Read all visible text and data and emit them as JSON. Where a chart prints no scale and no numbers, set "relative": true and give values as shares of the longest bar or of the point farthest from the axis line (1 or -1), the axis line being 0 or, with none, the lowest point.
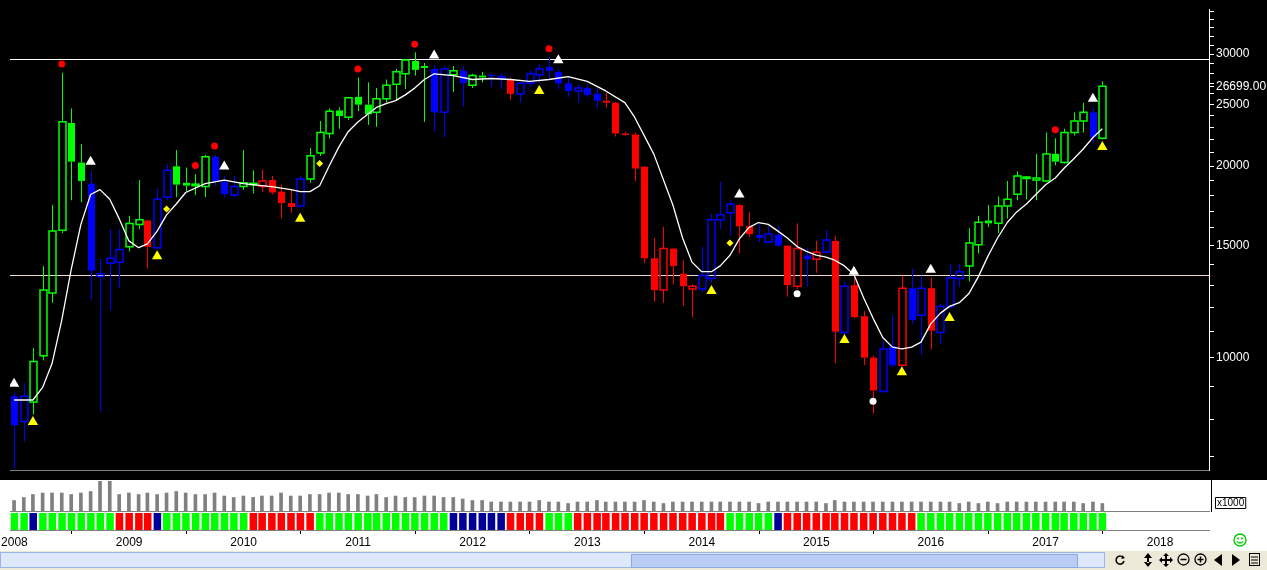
{
  "chart_data": [
    {
      "type": "candlestick",
      "x": [
        "2008-01",
        "2008-02",
        "2008-03",
        "2008-04",
        "2008-05",
        "2008-06",
        "2008-07",
        "2008-08",
        "2008-09",
        "2008-10",
        "2008-11",
        "2008-12",
        "2009-01",
        "2009-02",
        "2009-03",
        "2009-04",
        "2009-05",
        "2009-06",
        "2009-07",
        "2009-08",
        "2009-09",
        "2009-10",
        "2009-11",
        "2009-12",
        "2010-01",
        "2010-02",
        "2010-03",
        "2010-04",
        "2010-05",
        "2010-06",
        "2010-07",
        "2010-08",
        "2010-09",
        "2010-10",
        "2010-11",
        "2010-12",
        "2011-01",
        "2011-02",
        "2011-03",
        "2011-04",
        "2011-05",
        "2011-06",
        "2011-07",
        "2011-08",
        "2011-09",
        "2011-10",
        "2011-11",
        "2011-12",
        "2012-01",
        "2012-02",
        "2012-03",
        "2012-04",
        "2012-05",
        "2012-06",
        "2012-07",
        "2012-08",
        "2012-09",
        "2012-10",
        "2012-11",
        "2012-12",
        "2013-01",
        "2013-02",
        "2013-03",
        "2013-04",
        "2013-05",
        "2013-06",
        "2013-07",
        "2013-08",
        "2013-09",
        "2013-10",
        "2013-11",
        "2013-12",
        "2014-01",
        "2014-02",
        "2014-03",
        "2014-04",
        "2014-05",
        "2014-06",
        "2014-07",
        "2014-08",
        "2014-09",
        "2014-10",
        "2014-11",
        "2014-12",
        "2015-01",
        "2015-02",
        "2015-03",
        "2015-04",
        "2015-05",
        "2015-06",
        "2015-07",
        "2015-08",
        "2015-09",
        "2015-10",
        "2015-11",
        "2015-12",
        "2016-01",
        "2016-02",
        "2016-03",
        "2016-04",
        "2016-05",
        "2016-06",
        "2016-07",
        "2016-08",
        "2016-09",
        "2016-10",
        "2016-11",
        "2016-12",
        "2017-01",
        "2017-02",
        "2017-03",
        "2017-04",
        "2017-05",
        "2017-06",
        "2017-07"
      ],
      "ohlc": [
        [
          8700,
          8820,
          6700,
          7830
        ],
        [
          7940,
          9120,
          7380,
          8700
        ],
        [
          8520,
          10360,
          8140,
          9860
        ],
        [
          10070,
          13930,
          9900,
          12770
        ],
        [
          12640,
          17380,
          12200,
          15810
        ],
        [
          15860,
          28050,
          15700,
          23480
        ],
        [
          23390,
          24650,
          17680,
          20330
        ],
        [
          20260,
          21660,
          17560,
          18960
        ],
        [
          18770,
          19630,
          12330,
          13700
        ],
        [
          13410,
          14280,
          8230,
          13550
        ],
        [
          14080,
          15920,
          11870,
          14330
        ],
        [
          14130,
          15920,
          12860,
          14790
        ],
        [
          14940,
          16710,
          14690,
          16250
        ],
        [
          16190,
          19020,
          15920,
          16480
        ],
        [
          16430,
          16480,
          13800,
          14940
        ],
        [
          14890,
          18440,
          14840,
          17740
        ],
        [
          17880,
          20190,
          17680,
          19700
        ],
        [
          19990,
          21200,
          17880,
          18710
        ],
        [
          18830,
          19900,
          18240,
          18640
        ],
        [
          18700,
          19430,
          18010,
          18740
        ],
        [
          18580,
          20840,
          17880,
          20690
        ],
        [
          20690,
          20840,
          18640,
          18900
        ],
        [
          18900,
          19300,
          17880,
          18070
        ],
        [
          18010,
          19300,
          17880,
          18580
        ],
        [
          18580,
          21200,
          18370,
          18830
        ],
        [
          18770,
          19700,
          18120,
          18800
        ],
        [
          18580,
          19760,
          18240,
          18960
        ],
        [
          19020,
          19300,
          18060,
          18180
        ],
        [
          18240,
          18710,
          16540,
          17500
        ],
        [
          17500,
          18370,
          16890,
          17250
        ],
        [
          17310,
          19300,
          17250,
          19090
        ],
        [
          19090,
          21360,
          18830,
          20760
        ],
        [
          20980,
          23550,
          20760,
          22590
        ],
        [
          22510,
          24650,
          22120,
          24400
        ],
        [
          24470,
          24740,
          22900,
          23970
        ],
        [
          23880,
          25700,
          23640,
          25610
        ],
        [
          25700,
          27560,
          24400,
          24990
        ],
        [
          24990,
          27090,
          23220,
          24130
        ],
        [
          24300,
          26530,
          23060,
          25520
        ],
        [
          25520,
          27370,
          25170,
          26810
        ],
        [
          26910,
          28440,
          25350,
          28140
        ],
        [
          27940,
          29480,
          26440,
          29380
        ],
        [
          29270,
          30200,
          27760,
          28340
        ],
        [
          28740,
          29060,
          23480,
          28540
        ],
        [
          28440,
          28840,
          22660,
          24300
        ],
        [
          24300,
          28740,
          22200,
          28440
        ],
        [
          27850,
          28740,
          26170,
          28240
        ],
        [
          28240,
          28740,
          24820,
          27000
        ],
        [
          26810,
          27940,
          26530,
          27760
        ],
        [
          27760,
          28140,
          27090,
          27570
        ],
        [
          27850,
          27940,
          26630,
          27760
        ],
        [
          27470,
          28050,
          26440,
          27660
        ],
        [
          27370,
          27560,
          25440,
          25980
        ],
        [
          25980,
          27090,
          25170,
          27000
        ],
        [
          27000,
          28240,
          26630,
          27940
        ],
        [
          27850,
          28950,
          27090,
          28440
        ],
        [
          28640,
          29660,
          27370,
          28240
        ],
        [
          28140,
          28440,
          26440,
          27000
        ],
        [
          27000,
          27560,
          25700,
          26250
        ],
        [
          26250,
          26910,
          25170,
          26530
        ],
        [
          26530,
          26910,
          25700,
          25890
        ],
        [
          25980,
          26530,
          24650,
          25350
        ],
        [
          25350,
          26070,
          24740,
          25170
        ],
        [
          25170,
          25260,
          22270,
          22510
        ],
        [
          22510,
          22660,
          22350,
          22430
        ],
        [
          22430,
          22590,
          18960,
          19830
        ],
        [
          19960,
          20020,
          14080,
          14330
        ],
        [
          14330,
          15420,
          12250,
          12770
        ],
        [
          12770,
          16050,
          12200,
          14840
        ],
        [
          14840,
          14890,
          13040,
          13930
        ],
        [
          13550,
          14230,
          12070,
          12950
        ],
        [
          12820,
          13040,
          11580,
          12950
        ],
        [
          12820,
          14940,
          12680,
          13460
        ],
        [
          13320,
          16830,
          13130,
          16480
        ],
        [
          16480,
          18900,
          15920,
          16770
        ],
        [
          16890,
          17680,
          15540,
          17430
        ],
        [
          17370,
          17430,
          14590,
          16090
        ],
        [
          16090,
          16950,
          15480,
          15640
        ],
        [
          15590,
          16200,
          15200,
          15430
        ],
        [
          15200,
          16090,
          15150,
          15640
        ],
        [
          15590,
          16150,
          14940,
          15000
        ],
        [
          15000,
          15000,
          12470,
          13000
        ],
        [
          12950,
          16260,
          12820,
          14840
        ],
        [
          14480,
          14890,
          12950,
          14280
        ],
        [
          14280,
          15260,
          13600,
          14640
        ],
        [
          14640,
          15860,
          14590,
          15310
        ],
        [
          15260,
          15540,
          9800,
          10990
        ],
        [
          10950,
          13180,
          10830,
          12950
        ],
        [
          13000,
          13360,
          11540,
          11580
        ],
        [
          11620,
          11830,
          9730,
          10000
        ],
        [
          10000,
          10070,
          8170,
          8880
        ],
        [
          8850,
          10610,
          8820,
          10320
        ],
        [
          10430,
          11660,
          9660,
          9730
        ],
        [
          9730,
          13460,
          9690,
          12860
        ],
        [
          12860,
          13800,
          11300,
          11460
        ],
        [
          11660,
          13460,
          10100,
          12860
        ],
        [
          12860,
          13360,
          10320,
          11030
        ],
        [
          10950,
          12160,
          10500,
          12040
        ],
        [
          12040,
          14030,
          11950,
          13360
        ],
        [
          13320,
          14030,
          12910,
          13650
        ],
        [
          13930,
          15980,
          13180,
          15150
        ],
        [
          15050,
          16710,
          14590,
          16320
        ],
        [
          16430,
          17380,
          16040,
          16260
        ],
        [
          16260,
          17930,
          15700,
          17310
        ],
        [
          17310,
          18960,
          16540,
          17740
        ],
        [
          18060,
          19630,
          17680,
          19300
        ],
        [
          19160,
          19300,
          17740,
          19230
        ],
        [
          19020,
          20910,
          17680,
          19160
        ],
        [
          18960,
          22590,
          18900,
          20910
        ],
        [
          20910,
          22120,
          20060,
          20330
        ],
        [
          20260,
          22900,
          20190,
          22590
        ],
        [
          22590,
          24300,
          22350,
          23550
        ],
        [
          23550,
          25170,
          22590,
          24300
        ],
        [
          24300,
          24740,
          21740,
          22200
        ],
        [
          22120,
          27180,
          22040,
          26699
        ]
      ],
      "colors": [
        "#0000ff",
        "#0000ff",
        "#00ff00",
        "#00ff00",
        "#00ff00",
        "#00ff00",
        "#00ff00",
        "#00ff00",
        "#0000ff",
        "#0000ff",
        "#0000ff",
        "#0000ff",
        "#00ff00",
        "#00ff00",
        "#ff0000",
        "#0000ff",
        "#0000ff",
        "#00ff00",
        "#00ff00",
        "#00ff00",
        "#00ff00",
        "#0000ff",
        "#0000ff",
        "#0000ff",
        "#00ff00",
        "#00ff00",
        "#ff0000",
        "#ff0000",
        "#ff0000",
        "#ff0000",
        "#0000ff",
        "#00ff00",
        "#00ff00",
        "#00ff00",
        "#00ff00",
        "#00ff00",
        "#00ff00",
        "#00ff00",
        "#00ff00",
        "#00ff00",
        "#00ff00",
        "#00ff00",
        "#00ff00",
        "#00ff00",
        "#0000ff",
        "#0000ff",
        "#00ff00",
        "#0000ff",
        "#00ff00",
        "#00ff00",
        "#0000ff",
        "#0000ff",
        "#ff0000",
        "#0000ff",
        "#0000ff",
        "#0000ff",
        "#0000ff",
        "#0000ff",
        "#0000ff",
        "#0000ff",
        "#0000ff",
        "#0000ff",
        "#ff0000",
        "#ff0000",
        "#ff0000",
        "#ff0000",
        "#ff0000",
        "#ff0000",
        "#ff0000",
        "#ff0000",
        "#ff0000",
        "#ff0000",
        "#0000ff",
        "#0000ff",
        "#0000ff",
        "#0000ff",
        "#ff0000",
        "#ff0000",
        "#0000ff",
        "#0000ff",
        "#0000ff",
        "#ff0000",
        "#ff0000",
        "#0000ff",
        "#ff0000",
        "#0000ff",
        "#ff0000",
        "#0000ff",
        "#ff0000",
        "#ff0000",
        "#ff0000",
        "#0000ff",
        "#0000ff",
        "#ff0000",
        "#0000ff",
        "#0000ff",
        "#ff0000",
        "#0000ff",
        "#0000ff",
        "#0000ff",
        "#00ff00",
        "#00ff00",
        "#00ff00",
        "#00ff00",
        "#00ff00",
        "#00ff00",
        "#00ff00",
        "#00ff00",
        "#00ff00",
        "#00ff00",
        "#00ff00",
        "#00ff00",
        "#00ff00",
        "#0000ff",
        "#00ff00"
      ],
      "series": [
        {
          "type": "line",
          "color": "#ffffff",
          "marker": "none",
          "x": [
            "2008-01",
            "2008-03",
            "2008-04",
            "2008-05",
            "2008-06",
            "2008-07",
            "2008-08",
            "2008-09",
            "2008-10",
            "2008-11",
            "2008-12",
            "2009-01",
            "2009-02",
            "2009-03",
            "2009-04",
            "2009-05",
            "2009-06",
            "2009-07",
            "2009-09",
            "2009-11",
            "2010-01",
            "2010-04",
            "2010-06",
            "2010-07",
            "2010-08",
            "2010-09",
            "2010-10",
            "2010-11",
            "2010-12",
            "2011-01",
            "2011-02",
            "2011-03",
            "2011-04",
            "2011-05",
            "2011-06",
            "2011-07",
            "2011-08",
            "2011-09",
            "2011-11",
            "2012-01",
            "2012-03",
            "2012-05",
            "2012-07",
            "2012-09",
            "2012-11",
            "2013-01",
            "2013-03",
            "2013-05",
            "2013-06",
            "2013-08",
            "2013-10",
            "2013-11",
            "2013-12",
            "2014-01",
            "2014-02",
            "2014-03",
            "2014-04",
            "2014-05",
            "2014-06",
            "2014-07",
            "2014-08",
            "2014-09",
            "2014-10",
            "2014-11",
            "2014-12",
            "2015-01",
            "2015-02",
            "2015-03",
            "2015-04",
            "2015-05",
            "2015-06",
            "2015-07",
            "2015-08",
            "2015-09",
            "2015-10",
            "2015-11",
            "2015-12",
            "2016-01",
            "2016-02",
            "2016-03",
            "2016-04",
            "2016-05",
            "2016-06",
            "2016-07",
            "2016-08",
            "2016-09",
            "2016-10",
            "2016-11",
            "2016-12",
            "2017-01",
            "2017-02",
            "2017-03",
            "2017-04",
            "2017-05",
            "2017-06",
            "2017-07"
          ],
          "values": [
            8580,
            8580,
            8980,
            9790,
            11460,
            13750,
            16200,
            18050,
            18370,
            17740,
            16540,
            15260,
            14890,
            15100,
            15810,
            16770,
            17440,
            18180,
            18770,
            19020,
            18770,
            18570,
            18370,
            18240,
            18240,
            18630,
            19990,
            21430,
            22660,
            23470,
            24140,
            24740,
            25090,
            25350,
            25890,
            26530,
            27370,
            27940,
            27750,
            27370,
            27470,
            27370,
            27180,
            27370,
            27660,
            27180,
            26260,
            25170,
            23880,
            20910,
            17380,
            15420,
            14130,
            13650,
            13650,
            13940,
            14490,
            15370,
            16030,
            16310,
            16200,
            15810,
            15420,
            14950,
            14690,
            14490,
            14390,
            14230,
            13940,
            13510,
            12420,
            11540,
            10760,
            10390,
            10320,
            10390,
            10580,
            11300,
            11750,
            12040,
            12200,
            12600,
            13410,
            14430,
            15420,
            16310,
            16950,
            17440,
            18050,
            18700,
            19160,
            19850,
            20550,
            21280,
            22190,
            22900
          ]
        },
        {
          "type": "scatter",
          "color": "#ff0000",
          "marker": "circle",
          "x": [
            "2008-06",
            "2009-08",
            "2009-10",
            "2011-01",
            "2011-07",
            "2012-09",
            "2017-02"
          ],
          "values": [
            28940,
            20050,
            21510,
            28440,
            31100,
            30600,
            22820
          ]
        },
        {
          "type": "scatter",
          "color": "#ffff00",
          "marker": "diamond",
          "x": [
            "2009-05",
            "2010-09",
            "2014-04"
          ],
          "values": [
            17130,
            20190,
            15150
          ]
        },
        {
          "type": "scatter",
          "color": "#ffffff",
          "marker": "circle",
          "x": [
            "2014-11",
            "2015-07"
          ],
          "values": [
            12600,
            8540
          ]
        },
        {
          "type": "scatter",
          "color": "#ffff00",
          "marker": "triangle",
          "x": [
            "2008-03",
            "2009-04",
            "2010-07",
            "2012-08",
            "2014-02",
            "2015-04",
            "2015-10",
            "2016-03",
            "2017-07"
          ],
          "values": [
            7920,
            14430,
            16540,
            26260,
            12730,
            10660,
            9490,
            11540,
            21430
          ]
        },
        {
          "type": "scatter",
          "color": "#ffffff",
          "marker": "triangle",
          "x": [
            "2008-01",
            "2008-09",
            "2009-11",
            "2011-09",
            "2012-10",
            "2014-05",
            "2015-05",
            "2016-01",
            "2017-06"
          ],
          "values": [
            9100,
            20330,
            19980,
            29860,
            29350,
            18050,
            13650,
            13750,
            25530
          ]
        }
      ],
      "log": true,
      "ylim": [
        6640,
        35300
      ],
      "yticks": [
        {
          "value": 7000,
          "label": null
        },
        {
          "value": 8000,
          "label": null
        },
        {
          "value": 9000,
          "label": null
        },
        10000,
        {
          "value": 11000,
          "label": null
        },
        {
          "value": 12000,
          "label": null
        },
        {
          "value": 13000,
          "label": null
        },
        {
          "value": 14000,
          "label": null
        },
        15000,
        {
          "value": 16000,
          "label": null
        },
        {
          "value": 17000,
          "label": null
        },
        {
          "value": 18000,
          "label": null
        },
        {
          "value": 19000,
          "label": null
        },
        20000,
        {
          "value": 21000,
          "label": null
        },
        {
          "value": 22000,
          "label": null
        },
        {
          "value": 23000,
          "label": null
        },
        {
          "value": 24000,
          "label": null
        },
        25000,
        {
          "value": 26000,
          "label": null
        },
        {
          "value": 26699,
          "label": "26699.00"
        },
        {
          "value": 27000,
          "label": null
        },
        {
          "value": 28000,
          "label": null
        },
        {
          "value": 29000,
          "label": null
        },
        30000,
        {
          "value": 31000,
          "label": null
        },
        {
          "value": 32000,
          "label": null
        },
        {
          "value": 33000,
          "label": null
        },
        {
          "value": 34000,
          "label": null
        },
        {
          "value": 35000,
          "label": null
        }
      ],
      "xlim": [
        "2007-12-19",
        "2018-06-06"
      ],
      "tick_labels": "y",
      "ref_lines": [
        {
          "axis": "y",
          "value": 29460,
          "color": "#ffffff"
        },
        {
          "axis": "y",
          "value": 13510,
          "color": "#f0d8d0"
        }
      ]
    },
    {
      "type": "bar",
      "relative": true,
      "color": "#808080",
      "ylabel": "x1000",
      "xlim": [
        "2007-12-19",
        "2018-06-06"
      ],
      "tick_labels": false,
      "x": [
        "2008-01",
        "2008-02",
        "2008-03",
        "2008-04",
        "2008-05",
        "2008-06",
        "2008-07",
        "2008-08",
        "2008-09",
        "2008-10",
        "2008-11",
        "2008-12",
        "2009-01",
        "2009-02",
        "2009-03",
        "2009-04",
        "2009-05",
        "2009-06",
        "2009-07",
        "2009-08",
        "2009-09",
        "2009-10",
        "2009-11",
        "2009-12",
        "2010-01",
        "2010-02",
        "2010-03",
        "2010-04",
        "2010-05",
        "2010-06",
        "2010-07",
        "2010-08",
        "2010-09",
        "2010-10",
        "2010-11",
        "2010-12",
        "2011-01",
        "2011-02",
        "2011-03",
        "2011-04",
        "2011-05",
        "2011-06",
        "2011-07",
        "2011-08",
        "2011-09",
        "2011-10",
        "2011-11",
        "2011-12",
        "2012-01",
        "2012-02",
        "2012-03",
        "2012-04",
        "2012-05",
        "2012-06",
        "2012-07",
        "2012-08",
        "2012-09",
        "2012-10",
        "2012-11",
        "2012-12",
        "2013-01",
        "2013-02",
        "2013-03",
        "2013-04",
        "2013-05",
        "2013-06",
        "2013-07",
        "2013-08",
        "2013-09",
        "2013-10",
        "2013-11",
        "2013-12",
        "2014-01",
        "2014-02",
        "2014-03",
        "2014-04",
        "2014-05",
        "2014-06",
        "2014-07",
        "2014-08",
        "2014-09",
        "2014-10",
        "2014-11",
        "2014-12",
        "2015-01",
        "2015-02",
        "2015-03",
        "2015-04",
        "2015-05",
        "2015-06",
        "2015-07",
        "2015-08",
        "2015-09",
        "2015-10",
        "2015-11",
        "2015-12",
        "2016-01",
        "2016-02",
        "2016-03",
        "2016-04",
        "2016-05",
        "2016-06",
        "2016-07",
        "2016-08",
        "2016-09",
        "2016-10",
        "2016-11",
        "2016-12",
        "2017-01",
        "2017-02",
        "2017-03",
        "2017-04",
        "2017-05",
        "2017-06",
        "2017-07"
      ],
      "values": [
        0.35,
        0.45,
        0.55,
        0.6,
        0.6,
        0.6,
        0.55,
        0.6,
        0.65,
        1,
        1,
        0.55,
        0.6,
        0.55,
        0.6,
        0.55,
        0.6,
        0.65,
        0.6,
        0.55,
        0.55,
        0.6,
        0.5,
        0.45,
        0.5,
        0.45,
        0.5,
        0.5,
        0.6,
        0.5,
        0.5,
        0.55,
        0.55,
        0.6,
        0.6,
        0.55,
        0.55,
        0.5,
        0.55,
        0.45,
        0.5,
        0.45,
        0.45,
        0.5,
        0.5,
        0.45,
        0.45,
        0.4,
        0.35,
        0.35,
        0.3,
        0.3,
        0.3,
        0.3,
        0.3,
        0.35,
        0.3,
        0.3,
        0.25,
        0.3,
        0.3,
        0.35,
        0.3,
        0.3,
        0.3,
        0.3,
        0.35,
        0.3,
        0.25,
        0.3,
        0.3,
        0.3,
        0.3,
        0.3,
        0.3,
        0.3,
        0.3,
        0.3,
        0.25,
        0.3,
        0.3,
        0.3,
        0.3,
        0.3,
        0.3,
        0.25,
        0.35,
        0.3,
        0.3,
        0.3,
        0.3,
        0.3,
        0.3,
        0.3,
        0.3,
        0.3,
        0.3,
        0.3,
        0.3,
        0.25,
        0.3,
        0.25,
        0.3,
        0.25,
        0.3,
        0.3,
        0.3,
        0.3,
        0.3,
        0.3,
        0.3,
        0.3,
        0.25,
        0.3,
        0.25
      ]
    },
    {
      "type": "bar",
      "relative": true,
      "xlim": [
        "2007-12-19",
        "2018-06-06"
      ],
      "tick_labels": "x",
      "x": [
        "2008-01",
        "2008-02",
        "2008-03",
        "2008-04",
        "2008-05",
        "2008-06",
        "2008-07",
        "2008-08",
        "2008-09",
        "2008-10",
        "2008-11",
        "2008-12",
        "2009-01",
        "2009-02",
        "2009-03",
        "2009-04",
        "2009-05",
        "2009-06",
        "2009-07",
        "2009-08",
        "2009-09",
        "2009-10",
        "2009-11",
        "2009-12",
        "2010-01",
        "2010-02",
        "2010-03",
        "2010-04",
        "2010-05",
        "2010-06",
        "2010-07",
        "2010-08",
        "2010-09",
        "2010-10",
        "2010-11",
        "2010-12",
        "2011-01",
        "2011-02",
        "2011-03",
        "2011-04",
        "2011-05",
        "2011-06",
        "2011-07",
        "2011-08",
        "2011-09",
        "2011-10",
        "2011-11",
        "2011-12",
        "2012-01",
        "2012-02",
        "2012-03",
        "2012-04",
        "2012-05",
        "2012-06",
        "2012-07",
        "2012-08",
        "2012-09",
        "2012-10",
        "2012-11",
        "2012-12",
        "2013-01",
        "2013-02",
        "2013-03",
        "2013-04",
        "2013-05",
        "2013-06",
        "2013-07",
        "2013-08",
        "2013-09",
        "2013-10",
        "2013-11",
        "2013-12",
        "2014-01",
        "2014-02",
        "2014-03",
        "2014-04",
        "2014-05",
        "2014-06",
        "2014-07",
        "2014-08",
        "2014-09",
        "2014-10",
        "2014-11",
        "2014-12",
        "2015-01",
        "2015-02",
        "2015-03",
        "2015-04",
        "2015-05",
        "2015-06",
        "2015-07",
        "2015-08",
        "2015-09",
        "2015-10",
        "2015-11",
        "2015-12",
        "2016-01",
        "2016-02",
        "2016-03",
        "2016-04",
        "2016-05",
        "2016-06",
        "2016-07",
        "2016-08",
        "2016-09",
        "2016-10",
        "2016-11",
        "2016-12",
        "2017-01",
        "2017-02",
        "2017-03",
        "2017-04",
        "2017-05",
        "2017-06",
        "2017-07"
      ],
      "values": [
        1,
        1,
        1,
        1,
        1,
        1,
        1,
        1,
        1,
        1,
        1,
        1,
        1,
        1,
        1,
        1,
        1,
        1,
        1,
        1,
        1,
        1,
        1,
        1,
        1,
        1,
        1,
        1,
        1,
        1,
        1,
        1,
        1,
        1,
        1,
        1,
        1,
        1,
        1,
        1,
        1,
        1,
        1,
        1,
        1,
        1,
        1,
        1,
        1,
        1,
        1,
        1,
        1,
        1,
        1,
        1,
        1,
        1,
        1,
        1,
        1,
        1,
        1,
        1,
        1,
        1,
        1,
        1,
        1,
        1,
        1,
        1,
        1,
        1,
        1,
        1,
        1,
        1,
        1,
        1,
        1,
        1,
        1,
        1,
        1,
        1,
        1,
        1,
        1,
        1,
        1,
        1,
        1,
        1,
        1,
        1,
        1,
        1,
        1,
        1,
        1,
        1,
        1,
        1,
        1,
        1,
        1,
        1,
        1,
        1,
        1,
        1,
        1,
        1,
        1
      ],
      "colors": [
        "#00ff00",
        "#00ff00",
        "#000099",
        "#00ff00",
        "#00ff00",
        "#00ff00",
        "#00ff00",
        "#00ff00",
        "#00ff00",
        "#00ff00",
        "#00ff00",
        "#ff0000",
        "#ff0000",
        "#ff0000",
        "#ff0000",
        "#000099",
        "#00ff00",
        "#00ff00",
        "#00ff00",
        "#00ff00",
        "#00ff00",
        "#00ff00",
        "#00ff00",
        "#00ff00",
        "#00ff00",
        "#ff0000",
        "#ff0000",
        "#ff0000",
        "#ff0000",
        "#ff0000",
        "#ff0000",
        "#ff0000",
        "#00ff00",
        "#00ff00",
        "#00ff00",
        "#00ff00",
        "#00ff00",
        "#00ff00",
        "#00ff00",
        "#00ff00",
        "#00ff00",
        "#00ff00",
        "#00ff00",
        "#00ff00",
        "#00ff00",
        "#00ff00",
        "#000099",
        "#000099",
        "#000099",
        "#000099",
        "#000099",
        "#000099",
        "#ff0000",
        "#ff0000",
        "#ff0000",
        "#ff0000",
        "#00ff00",
        "#00ff00",
        "#00ff00",
        "#ff0000",
        "#ff0000",
        "#ff0000",
        "#ff0000",
        "#ff0000",
        "#ff0000",
        "#ff0000",
        "#ff0000",
        "#ff0000",
        "#ff0000",
        "#ff0000",
        "#ff0000",
        "#ff0000",
        "#ff0000",
        "#ff0000",
        "#ff0000",
        "#00ff00",
        "#00ff00",
        "#00ff00",
        "#00ff00",
        "#00ff00",
        "#000099",
        "#ff0000",
        "#ff0000",
        "#ff0000",
        "#ff0000",
        "#ff0000",
        "#ff0000",
        "#ff0000",
        "#ff0000",
        "#ff0000",
        "#ff0000",
        "#ff0000",
        "#ff0000",
        "#ff0000",
        "#ff0000",
        "#00ff00",
        "#00ff00",
        "#00ff00",
        "#00ff00",
        "#00ff00",
        "#00ff00",
        "#00ff00",
        "#00ff00",
        "#00ff00",
        "#00ff00",
        "#00ff00",
        "#00ff00",
        "#00ff00",
        "#00ff00",
        "#00ff00",
        "#00ff00",
        "#00ff00",
        "#00ff00",
        "#00ff00",
        "#00ff00"
      ],
      "xticks": [
        "2008",
        "2009",
        "2010",
        "2011",
        "2012",
        "2013",
        "2014",
        "2015",
        "2016",
        "2017",
        "2018"
      ]
    }
  ]
}
